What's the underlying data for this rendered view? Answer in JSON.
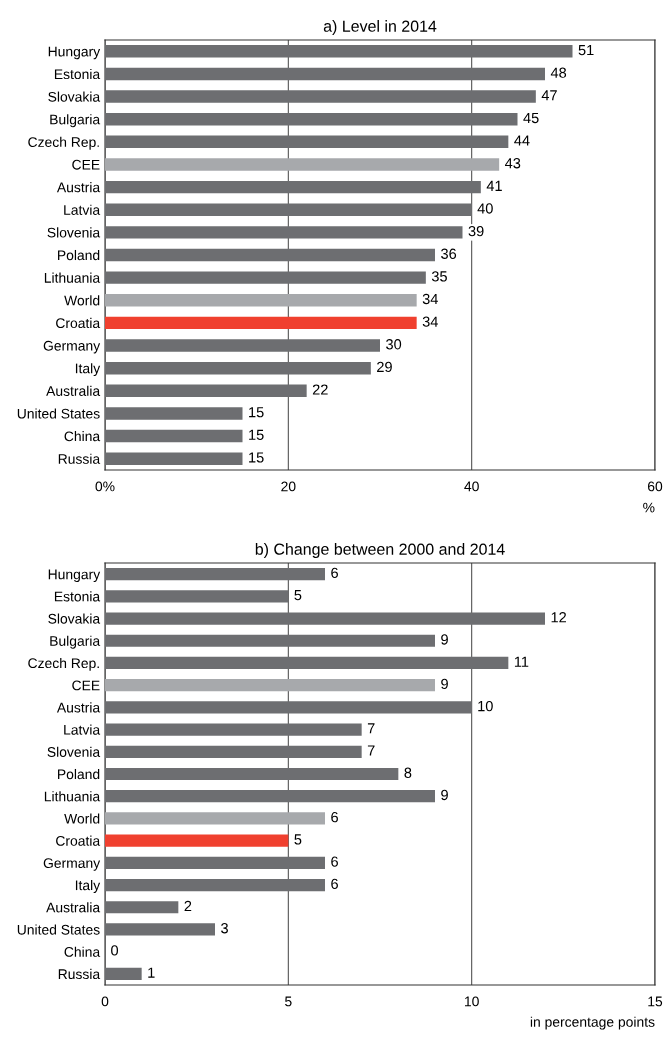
{
  "chart_data": [
    {
      "type": "bar",
      "orientation": "horizontal",
      "title": "a) Level in 2014",
      "xlabel": "%",
      "categories": [
        "Hungary",
        "Estonia",
        "Slovakia",
        "Bulgaria",
        "Czech Rep.",
        "CEE",
        "Austria",
        "Latvia",
        "Slovenia",
        "Poland",
        "Lithuania",
        "World",
        "Croatia",
        "Germany",
        "Italy",
        "Australia",
        "United States",
        "China",
        "Russia"
      ],
      "values": [
        51,
        48,
        47,
        45,
        44,
        43,
        41,
        40,
        39,
        36,
        35,
        34,
        34,
        30,
        29,
        22,
        15,
        15,
        15
      ],
      "colors": [
        "#6d6e71",
        "#6d6e71",
        "#6d6e71",
        "#6d6e71",
        "#6d6e71",
        "#a7a9ac",
        "#6d6e71",
        "#6d6e71",
        "#6d6e71",
        "#6d6e71",
        "#6d6e71",
        "#a7a9ac",
        "#f0402f",
        "#6d6e71",
        "#6d6e71",
        "#6d6e71",
        "#6d6e71",
        "#6d6e71",
        "#6d6e71"
      ],
      "xlim": [
        0,
        60
      ],
      "xticks": [
        {
          "value": 0,
          "label": "0%"
        },
        20,
        40,
        60
      ],
      "grid": "x",
      "data_labels": true
    },
    {
      "type": "bar",
      "orientation": "horizontal",
      "title": "b) Change between 2000 and 2014",
      "xlabel": "in percentage points",
      "categories": [
        "Hungary",
        "Estonia",
        "Slovakia",
        "Bulgaria",
        "Czech Rep.",
        "CEE",
        "Austria",
        "Latvia",
        "Slovenia",
        "Poland",
        "Lithuania",
        "World",
        "Croatia",
        "Germany",
        "Italy",
        "Australia",
        "United States",
        "China",
        "Russia"
      ],
      "values": [
        6,
        5,
        12,
        9,
        11,
        9,
        10,
        7,
        7,
        8,
        9,
        6,
        5,
        6,
        6,
        2,
        3,
        0,
        1
      ],
      "colors": [
        "#6d6e71",
        "#6d6e71",
        "#6d6e71",
        "#6d6e71",
        "#6d6e71",
        "#a7a9ac",
        "#6d6e71",
        "#6d6e71",
        "#6d6e71",
        "#6d6e71",
        "#6d6e71",
        "#a7a9ac",
        "#f0402f",
        "#6d6e71",
        "#6d6e71",
        "#6d6e71",
        "#6d6e71",
        "#6d6e71",
        "#6d6e71"
      ],
      "xlim": [
        0,
        15
      ],
      "xticks": [
        0,
        5,
        10,
        15
      ],
      "grid": "x",
      "data_labels": true
    }
  ]
}
